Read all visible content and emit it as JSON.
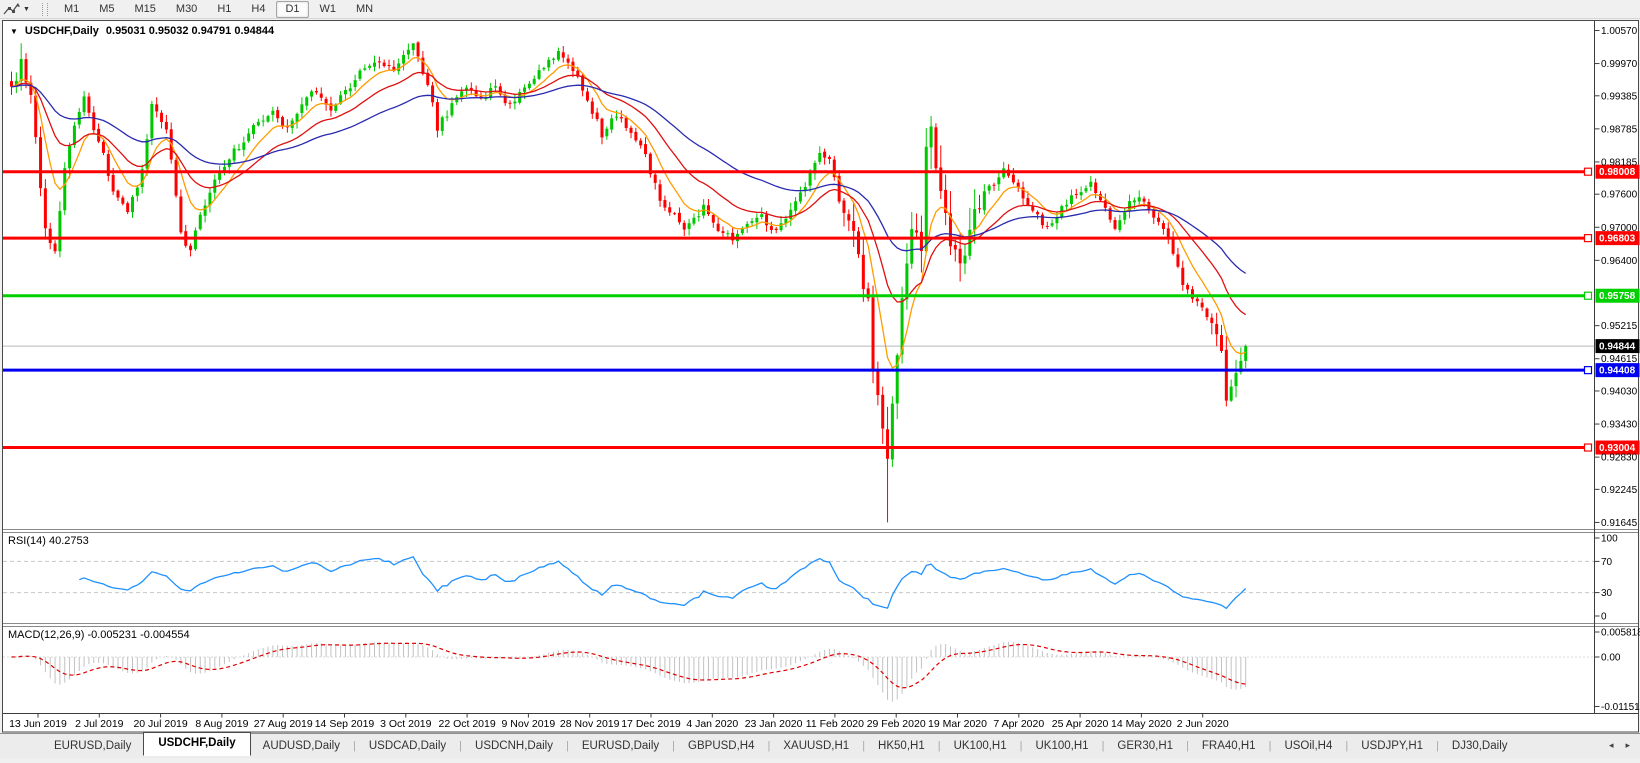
{
  "toolbar": {
    "tool_icon": "crosshair-cursor",
    "timeframes": [
      "M1",
      "M5",
      "M15",
      "M30",
      "H1",
      "H4",
      "D1",
      "W1",
      "MN"
    ],
    "active_timeframe": "D1"
  },
  "window": {
    "collapse_icon": "▼",
    "symbol_title": "USDCHF,Daily",
    "quotes": "0.95031 0.95032 0.94791 0.94844"
  },
  "price_scale": {
    "ticks": [
      "1.00570",
      "0.99970",
      "0.99385",
      "0.98785",
      "0.98185",
      "0.97600",
      "0.97000",
      "0.96400",
      "0.95215",
      "0.94615",
      "0.94030",
      "0.93430",
      "0.92830",
      "0.92245",
      "0.91645"
    ]
  },
  "levels": [
    {
      "label": "0.98008",
      "price": 0.98008,
      "color": "#fe0000"
    },
    {
      "label": "0.96803",
      "price": 0.96803,
      "color": "#fe0000"
    },
    {
      "label": "0.95758",
      "price": 0.95758,
      "color": "#00d000"
    },
    {
      "label": "0.94408",
      "price": 0.94408,
      "color": "#0000f0"
    },
    {
      "label": "0.93004",
      "price": 0.93004,
      "color": "#fe0000"
    }
  ],
  "current_price": {
    "label": "0.94844",
    "price": 0.94844
  },
  "rsi_panel": {
    "label": "RSI(14) 40.2753",
    "value": 40.2753,
    "scale": [
      {
        "v": 100,
        "label": "100"
      },
      {
        "v": 70,
        "label": "70"
      },
      {
        "v": 30,
        "label": "30"
      },
      {
        "v": 0,
        "label": "0"
      }
    ],
    "dashed_levels": [
      70,
      30
    ],
    "line_color": "#1e90ff"
  },
  "macd_panel": {
    "label": "MACD(12,26,9) -0.005231 -0.004554",
    "macd": -0.005231,
    "signal": -0.004554,
    "scale": [
      {
        "v": 0.005818,
        "label": "0.005818"
      },
      {
        "v": 0,
        "label": "0.00"
      },
      {
        "v": -0.011514,
        "label": "-0.011514"
      }
    ],
    "hist_color": "#c2c2c2",
    "signal_color": "#e00000"
  },
  "date_axis": [
    "13 Jun 2019",
    "2 Jul 2019",
    "20 Jul 2019",
    "8 Aug 2019",
    "27 Aug 2019",
    "14 Sep 2019",
    "3 Oct 2019",
    "22 Oct 2019",
    "9 Nov 2019",
    "28 Nov 2019",
    "17 Dec 2019",
    "4 Jan 2020",
    "23 Jan 2020",
    "11 Feb 2020",
    "29 Feb 2020",
    "19 Mar 2020",
    "7 Apr 2020",
    "25 Apr 2020",
    "14 May 2020",
    "2 Jun 2020"
  ],
  "tabs": {
    "items": [
      "EURUSD,Daily",
      "USDCHF,Daily",
      "AUDUSD,Daily",
      "USDCAD,Daily",
      "USDCNH,Daily",
      "EURUSD,Daily",
      "GBPUSD,H4",
      "XAUUSD,H1",
      "HK50,H1",
      "UK100,H1",
      "UK100,H1",
      "GER30,H1",
      "FRA40,H1",
      "USOil,H4",
      "USDJPY,H1",
      "DJ30,Daily"
    ],
    "active_index": 1,
    "scroll_left_icon": "◂",
    "scroll_right_icon": "▸"
  },
  "chart_data": {
    "type": "candlestick",
    "symbol": "USDCHF",
    "timeframe": "Daily",
    "bar_count": 256,
    "price_range": [
      0.91554,
      1.00733
    ],
    "bull_color": "#00c800",
    "bear_color": "#ff0000",
    "close_anchors": [
      [
        0,
        0.995
      ],
      [
        2,
        1.0
      ],
      [
        4,
        0.9935
      ],
      [
        7,
        0.969
      ],
      [
        9,
        0.966
      ],
      [
        11,
        0.98
      ],
      [
        13,
        0.988
      ],
      [
        15,
        0.9935
      ],
      [
        19,
        0.983
      ],
      [
        21,
        0.977
      ],
      [
        24,
        0.9725
      ],
      [
        27,
        0.98
      ],
      [
        29,
        0.992
      ],
      [
        32,
        0.988
      ],
      [
        35,
        0.969
      ],
      [
        37,
        0.9655
      ],
      [
        39,
        0.9725
      ],
      [
        42,
        0.978
      ],
      [
        45,
        0.9825
      ],
      [
        48,
        0.986
      ],
      [
        51,
        0.9895
      ],
      [
        54,
        0.991
      ],
      [
        57,
        0.988
      ],
      [
        60,
        0.992
      ],
      [
        63,
        0.995
      ],
      [
        66,
        0.991
      ],
      [
        69,
        0.9945
      ],
      [
        72,
        0.9985
      ],
      [
        75,
        1.0
      ],
      [
        79,
        0.999
      ],
      [
        82,
        1.0015
      ],
      [
        83,
        1.0027
      ],
      [
        86,
        0.996
      ],
      [
        88,
        0.988
      ],
      [
        91,
        0.992
      ],
      [
        94,
        0.995
      ],
      [
        97,
        0.993
      ],
      [
        100,
        0.9955
      ],
      [
        103,
        0.992
      ],
      [
        106,
        0.996
      ],
      [
        110,
        0.999
      ],
      [
        113,
        1.002
      ],
      [
        116,
        0.999
      ],
      [
        119,
        0.993
      ],
      [
        122,
        0.987
      ],
      [
        125,
        0.9905
      ],
      [
        128,
        0.987
      ],
      [
        131,
        0.983
      ],
      [
        134,
        0.975
      ],
      [
        137,
        0.972
      ],
      [
        139,
        0.97
      ],
      [
        143,
        0.9735
      ],
      [
        146,
        0.97
      ],
      [
        149,
        0.968
      ],
      [
        152,
        0.9705
      ],
      [
        155,
        0.972
      ],
      [
        158,
        0.969
      ],
      [
        161,
        0.973
      ],
      [
        164,
        0.978
      ],
      [
        167,
        0.984
      ],
      [
        169,
        0.982
      ],
      [
        171,
        0.975
      ],
      [
        174,
        0.97
      ],
      [
        175,
        0.964
      ],
      [
        177,
        0.956
      ],
      [
        178,
        0.945
      ],
      [
        180,
        0.933
      ],
      [
        181,
        0.929
      ],
      [
        183,
        0.948
      ],
      [
        184,
        0.956
      ],
      [
        186,
        0.97
      ],
      [
        188,
        0.966
      ],
      [
        189,
        0.985
      ],
      [
        190,
        0.9895
      ],
      [
        192,
        0.975
      ],
      [
        194,
        0.968
      ],
      [
        196,
        0.962
      ],
      [
        198,
        0.97
      ],
      [
        201,
        0.976
      ],
      [
        205,
        0.98
      ],
      [
        208,
        0.977
      ],
      [
        211,
        0.973
      ],
      [
        214,
        0.97
      ],
      [
        217,
        0.9735
      ],
      [
        220,
        0.9765
      ],
      [
        223,
        0.978
      ],
      [
        226,
        0.974
      ],
      [
        228,
        0.97
      ],
      [
        230,
        0.973
      ],
      [
        232,
        0.9755
      ],
      [
        234,
        0.974
      ],
      [
        236,
        0.972
      ],
      [
        238,
        0.97
      ],
      [
        240,
        0.965
      ],
      [
        242,
        0.96
      ],
      [
        244,
        0.957
      ],
      [
        246,
        0.955
      ],
      [
        248,
        0.952
      ],
      [
        250,
        0.948
      ],
      [
        251,
        0.939
      ],
      [
        253,
        0.943
      ],
      [
        255,
        0.94844
      ]
    ],
    "high_overrides": {
      "2": 1.0034,
      "83": 1.0033,
      "113": 1.0026,
      "190": 0.9902
    },
    "low_overrides": {
      "9": 0.9652,
      "37": 0.9647,
      "181": 0.91645,
      "251": 0.9375
    },
    "moving_averages": [
      {
        "period": 8,
        "color": "#ff9c00"
      },
      {
        "period": 20,
        "color": "#e01010"
      },
      {
        "period": 45,
        "color": "#2a2aaf"
      }
    ],
    "horizontal_levels": [
      0.98008,
      0.96803,
      0.95758,
      0.94408,
      0.93004
    ],
    "indicators": [
      {
        "name": "RSI",
        "period": 14,
        "current": 40.2753
      },
      {
        "name": "MACD",
        "fast": 12,
        "slow": 26,
        "signal_period": 9,
        "current_macd": -0.005231,
        "current_signal": -0.004554
      }
    ]
  }
}
